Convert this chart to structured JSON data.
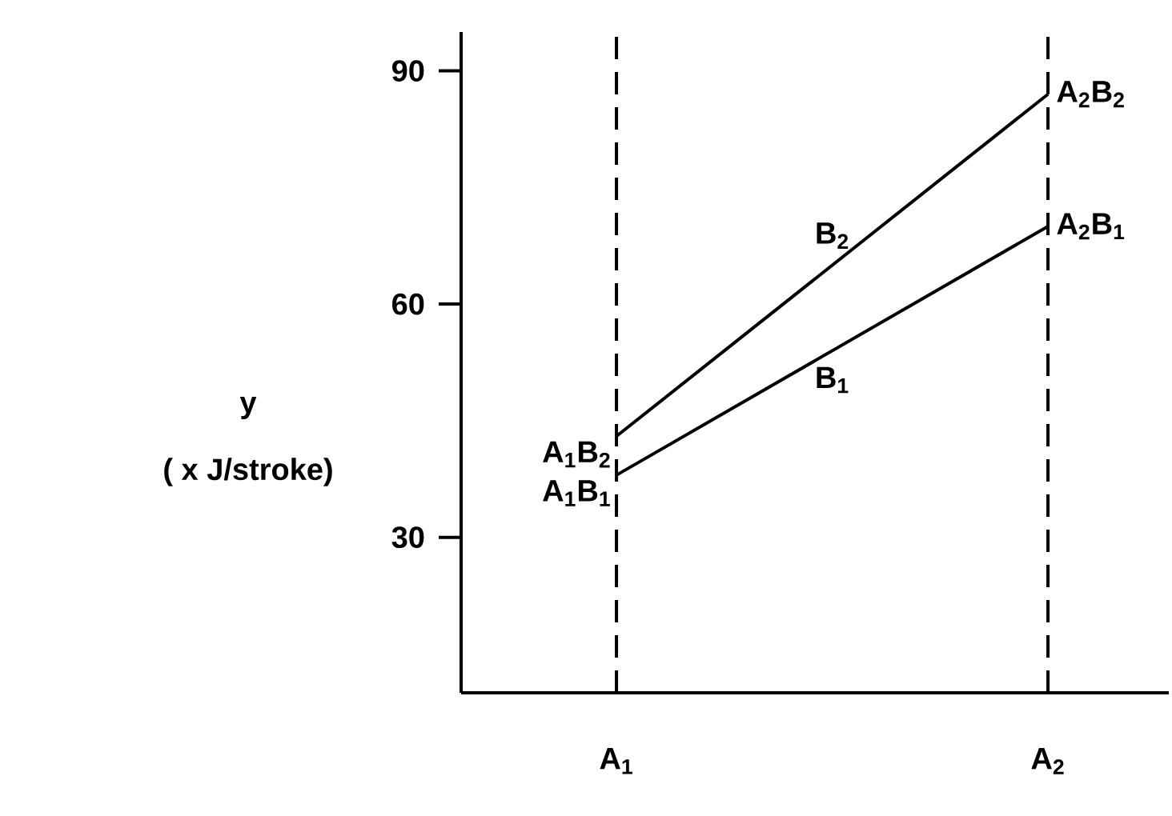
{
  "chart_data": {
    "type": "line",
    "categories": [
      "A$_{1}$",
      "A$_{2}$"
    ],
    "ylim": [
      10,
      95
    ],
    "yticks": [
      30,
      60,
      90
    ],
    "series": [
      {
        "name": "B$_{2}$",
        "color": "#000000",
        "values": [
          43,
          87
        ]
      },
      {
        "name": "B$_{1}$",
        "color": "#000000",
        "values": [
          38,
          70
        ]
      }
    ],
    "ref_lines": [
      {
        "axis": "x",
        "value": "A$_{1}$",
        "line_style": "dashed"
      },
      {
        "axis": "x",
        "value": "A$_{2}$",
        "line_style": "dashed"
      }
    ],
    "annotations": [
      "y",
      "( x J/stroke)",
      {
        "text": "A$_{1}$B$_{2}$",
        "x": "A$_{1}$",
        "y": 43
      },
      {
        "text": "A$_{1}$B$_{1}$",
        "x": "A$_{1}$",
        "y": 38
      },
      {
        "text": "A$_{2}$B$_{2}$",
        "x": "A$_{2}$",
        "y": 87
      },
      {
        "text": "A$_{2}$B$_{1}$",
        "x": "A$_{2}$",
        "y": 70
      }
    ],
    "legend": false,
    "grid": false,
    "marker": "none",
    "line_style": "solid"
  }
}
